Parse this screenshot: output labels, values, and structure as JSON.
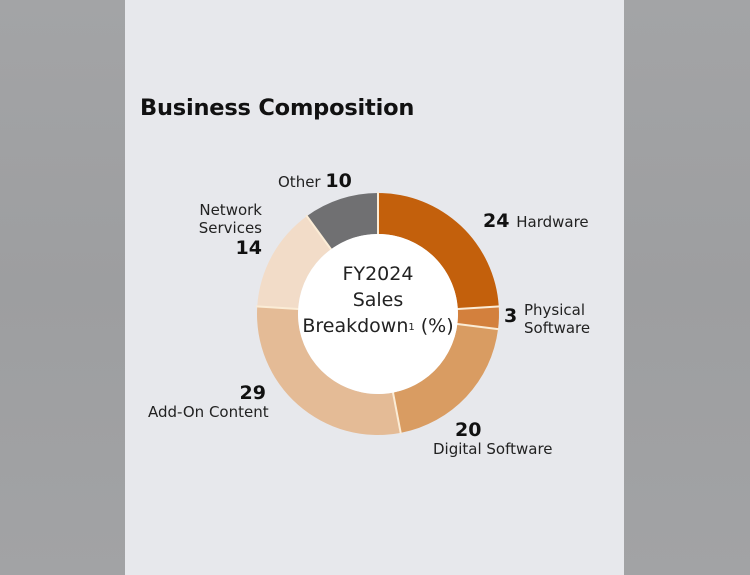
{
  "page": {
    "title": "Business Composition"
  },
  "chart": {
    "center_line1": "FY2024",
    "center_line2": "Sales",
    "center_line3": "Breakdown",
    "center_footnote": "1",
    "center_unit": " (%)"
  },
  "labels": {
    "hardware": {
      "value": "24",
      "name": "Hardware"
    },
    "physical_software": {
      "value": "3",
      "name_line1": "Physical",
      "name_line2": "Software"
    },
    "digital_software": {
      "value": "20",
      "name": "Digital Software"
    },
    "add_on_content": {
      "value": "29",
      "name": "Add-On Content"
    },
    "network_services": {
      "value": "14",
      "name_line1": "Network",
      "name_line2": "Services"
    },
    "other": {
      "value": "10",
      "name": "Other"
    }
  },
  "colors": {
    "hardware": "#c3600c",
    "physical_software": "#d3803d",
    "digital_software": "#d99c62",
    "add_on_content": "#e4bb96",
    "network_services": "#f2dcc8",
    "other": "#707072",
    "separator": "#fbecd6",
    "panel_bg": "#e7e8ec"
  },
  "chart_data": {
    "type": "pie",
    "subtype": "donut",
    "title": "Business Composition",
    "center_label": "FY2024 Sales Breakdown¹ (%)",
    "categories": [
      "Hardware",
      "Physical Software",
      "Digital Software",
      "Add-On Content",
      "Network Services",
      "Other"
    ],
    "values": [
      24,
      3,
      20,
      29,
      14,
      10
    ],
    "unit": "%",
    "start_angle": "12 o'clock",
    "direction": "clockwise",
    "colors": [
      "#c3600c",
      "#d3803d",
      "#d99c62",
      "#e4bb96",
      "#f2dcc8",
      "#707072"
    ],
    "legend": "none (direct labels)",
    "grid": false
  }
}
